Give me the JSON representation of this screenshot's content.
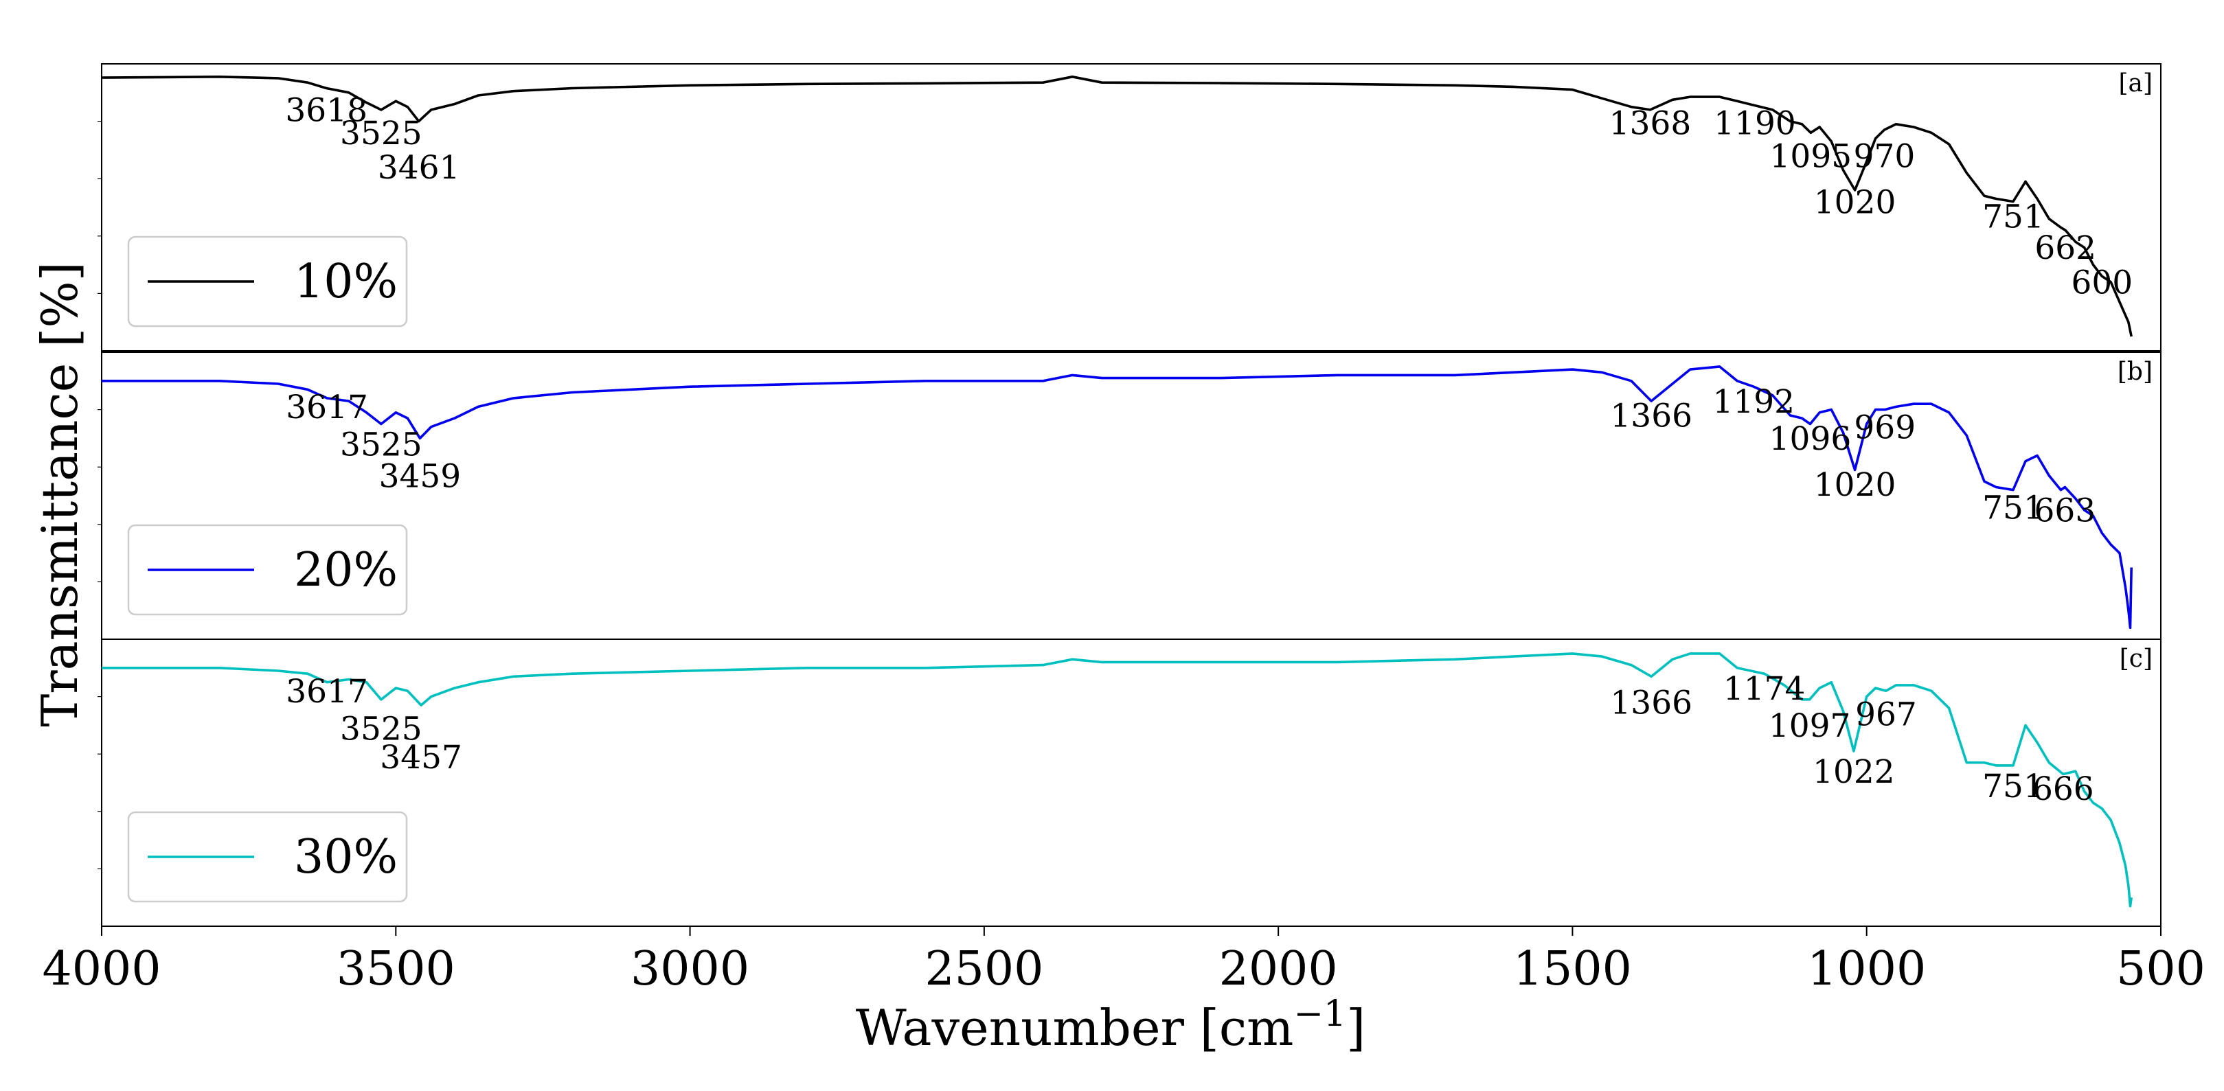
{
  "chart_data": {
    "type": "line",
    "xlabel": "Wavenumber [cm",
    "xlabel_sup": "−1",
    "xlabel_end": "]",
    "ylabel": "Transmittance [%]",
    "xlim": [
      4000,
      500
    ],
    "x_reversed": true,
    "x_ticks": [
      4000,
      3500,
      3000,
      2500,
      2000,
      1500,
      1000,
      500
    ],
    "x_tick_labels": [
      "4000",
      "3500",
      "3000",
      "2500",
      "2000",
      "1500",
      "1000",
      "500"
    ],
    "grid": false,
    "legend_placement": "lower-left",
    "panels": [
      {
        "tag": "[a]",
        "legend_label": "10%",
        "color": "#000000",
        "x": [
          4000,
          3800,
          3700,
          3650,
          3618,
          3580,
          3550,
          3525,
          3500,
          3480,
          3461,
          3440,
          3400,
          3360,
          3300,
          3200,
          3000,
          2800,
          2600,
          2400,
          2350,
          2300,
          2100,
          1900,
          1700,
          1600,
          1500,
          1450,
          1400,
          1368,
          1330,
          1300,
          1250,
          1220,
          1190,
          1160,
          1130,
          1110,
          1095,
          1080,
          1060,
          1040,
          1020,
          1000,
          985,
          970,
          950,
          920,
          890,
          860,
          830,
          800,
          780,
          751,
          730,
          710,
          690,
          670,
          662,
          645,
          630,
          615,
          600,
          585,
          570,
          555,
          550
        ],
        "y": [
          0.952,
          0.955,
          0.95,
          0.935,
          0.915,
          0.9,
          0.865,
          0.84,
          0.87,
          0.85,
          0.8,
          0.84,
          0.86,
          0.89,
          0.905,
          0.915,
          0.925,
          0.93,
          0.932,
          0.935,
          0.955,
          0.935,
          0.933,
          0.93,
          0.925,
          0.92,
          0.91,
          0.88,
          0.85,
          0.84,
          0.875,
          0.885,
          0.885,
          0.87,
          0.855,
          0.84,
          0.8,
          0.79,
          0.76,
          0.78,
          0.73,
          0.63,
          0.56,
          0.66,
          0.74,
          0.77,
          0.79,
          0.78,
          0.76,
          0.72,
          0.62,
          0.54,
          0.53,
          0.52,
          0.59,
          0.53,
          0.46,
          0.43,
          0.42,
          0.38,
          0.36,
          0.3,
          0.26,
          0.24,
          0.17,
          0.1,
          0.05
        ],
        "annotations": [
          {
            "text": "3618",
            "x": 3618,
            "y": 0.8
          },
          {
            "text": "3525",
            "x": 3525,
            "y": 0.72
          },
          {
            "text": "3461",
            "x": 3461,
            "y": 0.6
          },
          {
            "text": "1368",
            "x": 1368,
            "y": 0.755
          },
          {
            "text": "1190",
            "x": 1190,
            "y": 0.755
          },
          {
            "text": "1095",
            "x": 1095,
            "y": 0.64
          },
          {
            "text": "970",
            "x": 970,
            "y": 0.64
          },
          {
            "text": "1020",
            "x": 1020,
            "y": 0.48
          },
          {
            "text": "751",
            "x": 751,
            "y": 0.43
          },
          {
            "text": "662",
            "x": 662,
            "y": 0.32
          },
          {
            "text": "600",
            "x": 600,
            "y": 0.2
          }
        ]
      },
      {
        "tag": "[b]",
        "legend_label": "20%",
        "color": "#0000ee",
        "x": [
          4000,
          3800,
          3700,
          3650,
          3617,
          3580,
          3550,
          3525,
          3500,
          3480,
          3459,
          3440,
          3400,
          3360,
          3300,
          3200,
          3000,
          2800,
          2600,
          2400,
          2350,
          2300,
          2100,
          1900,
          1700,
          1600,
          1500,
          1450,
          1400,
          1366,
          1330,
          1300,
          1250,
          1220,
          1192,
          1160,
          1130,
          1110,
          1096,
          1080,
          1060,
          1040,
          1020,
          1000,
          985,
          969,
          950,
          920,
          890,
          860,
          830,
          800,
          780,
          751,
          730,
          710,
          690,
          670,
          663,
          645,
          630,
          615,
          600,
          585,
          570,
          560,
          555,
          552,
          550
        ],
        "y": [
          0.9,
          0.9,
          0.89,
          0.87,
          0.84,
          0.83,
          0.79,
          0.75,
          0.79,
          0.77,
          0.7,
          0.74,
          0.77,
          0.81,
          0.84,
          0.86,
          0.88,
          0.89,
          0.9,
          0.9,
          0.92,
          0.91,
          0.91,
          0.92,
          0.92,
          0.93,
          0.94,
          0.93,
          0.9,
          0.83,
          0.89,
          0.94,
          0.95,
          0.9,
          0.88,
          0.85,
          0.78,
          0.77,
          0.75,
          0.79,
          0.8,
          0.72,
          0.59,
          0.75,
          0.8,
          0.8,
          0.81,
          0.82,
          0.82,
          0.79,
          0.71,
          0.55,
          0.53,
          0.52,
          0.62,
          0.64,
          0.57,
          0.52,
          0.53,
          0.49,
          0.45,
          0.43,
          0.37,
          0.33,
          0.3,
          0.18,
          0.1,
          0.04,
          0.25
        ],
        "annotations": [
          {
            "text": "3617",
            "x": 3617,
            "y": 0.77
          },
          {
            "text": "3525",
            "x": 3525,
            "y": 0.64
          },
          {
            "text": "3459",
            "x": 3459,
            "y": 0.53
          },
          {
            "text": "1366",
            "x": 1366,
            "y": 0.74
          },
          {
            "text": "1192",
            "x": 1192,
            "y": 0.79
          },
          {
            "text": "1096",
            "x": 1096,
            "y": 0.66
          },
          {
            "text": "969",
            "x": 969,
            "y": 0.7
          },
          {
            "text": "1020",
            "x": 1020,
            "y": 0.5
          },
          {
            "text": "751",
            "x": 751,
            "y": 0.42
          },
          {
            "text": "663",
            "x": 663,
            "y": 0.41
          }
        ]
      },
      {
        "tag": "[c]",
        "legend_label": "30%",
        "color": "#00bfbf",
        "x": [
          4000,
          3800,
          3700,
          3650,
          3617,
          3580,
          3550,
          3525,
          3500,
          3480,
          3457,
          3440,
          3400,
          3360,
          3300,
          3200,
          3000,
          2800,
          2600,
          2400,
          2350,
          2300,
          2100,
          1900,
          1700,
          1600,
          1500,
          1450,
          1400,
          1366,
          1330,
          1300,
          1250,
          1220,
          1174,
          1140,
          1110,
          1097,
          1080,
          1060,
          1040,
          1022,
          1000,
          985,
          967,
          950,
          920,
          890,
          860,
          830,
          800,
          780,
          751,
          730,
          710,
          690,
          666,
          645,
          630,
          615,
          600,
          585,
          570,
          560,
          555,
          552,
          550
        ],
        "y": [
          0.9,
          0.9,
          0.89,
          0.88,
          0.85,
          0.86,
          0.85,
          0.79,
          0.83,
          0.82,
          0.77,
          0.8,
          0.83,
          0.85,
          0.87,
          0.88,
          0.89,
          0.9,
          0.9,
          0.91,
          0.93,
          0.92,
          0.92,
          0.92,
          0.93,
          0.94,
          0.95,
          0.94,
          0.91,
          0.87,
          0.93,
          0.95,
          0.95,
          0.9,
          0.88,
          0.84,
          0.79,
          0.79,
          0.83,
          0.85,
          0.75,
          0.61,
          0.8,
          0.83,
          0.82,
          0.84,
          0.84,
          0.82,
          0.76,
          0.57,
          0.57,
          0.56,
          0.56,
          0.7,
          0.64,
          0.57,
          0.53,
          0.54,
          0.47,
          0.43,
          0.41,
          0.37,
          0.29,
          0.21,
          0.14,
          0.07,
          0.1
        ],
        "annotations": [
          {
            "text": "3617",
            "x": 3617,
            "y": 0.78
          },
          {
            "text": "3525",
            "x": 3525,
            "y": 0.65
          },
          {
            "text": "3457",
            "x": 3457,
            "y": 0.55
          },
          {
            "text": "1366",
            "x": 1366,
            "y": 0.74
          },
          {
            "text": "1174",
            "x": 1174,
            "y": 0.79
          },
          {
            "text": "1097",
            "x": 1097,
            "y": 0.66
          },
          {
            "text": "967",
            "x": 967,
            "y": 0.7
          },
          {
            "text": "1022",
            "x": 1022,
            "y": 0.5
          },
          {
            "text": "751",
            "x": 751,
            "y": 0.45
          },
          {
            "text": "666",
            "x": 666,
            "y": 0.44
          }
        ]
      }
    ]
  }
}
